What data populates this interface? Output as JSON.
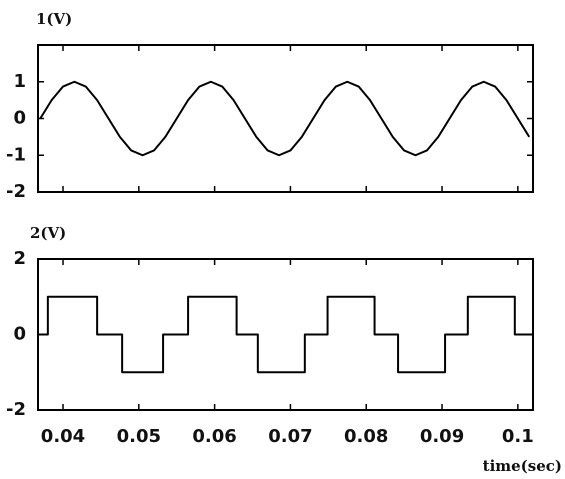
{
  "chart_data": [
    {
      "type": "line",
      "ylabel": "1(V)",
      "color": "#000000",
      "xlim": [
        0.0367,
        0.102
      ],
      "ylim": [
        -2,
        2
      ],
      "yticks": [
        1,
        0,
        -1,
        -2
      ],
      "xticks": [
        0.04,
        0.05,
        0.06,
        0.07,
        0.08,
        0.09,
        0.1
      ],
      "x": [
        0.037,
        0.0385,
        0.04,
        0.0415,
        0.043,
        0.0445,
        0.046,
        0.0475,
        0.049,
        0.0505,
        0.052,
        0.0535,
        0.055,
        0.0565,
        0.058,
        0.0595,
        0.061,
        0.0625,
        0.064,
        0.0655,
        0.067,
        0.0685,
        0.07,
        0.0715,
        0.073,
        0.0745,
        0.076,
        0.0775,
        0.079,
        0.0805,
        0.082,
        0.0835,
        0.085,
        0.0865,
        0.088,
        0.0895,
        0.091,
        0.0925,
        0.094,
        0.0955,
        0.097,
        0.0985,
        0.1,
        0.1015
      ],
      "values": [
        0,
        0.5,
        0.87,
        1,
        0.87,
        0.5,
        0,
        -0.5,
        -0.87,
        -1,
        -0.87,
        -0.5,
        0,
        0.5,
        0.87,
        1,
        0.87,
        0.5,
        0,
        -0.5,
        -0.87,
        -1,
        -0.87,
        -0.5,
        0,
        0.5,
        0.87,
        1,
        0.87,
        0.5,
        0,
        -0.5,
        -0.87,
        -1,
        -0.87,
        -0.5,
        0,
        0.5,
        0.87,
        1,
        0.87,
        0.5,
        0,
        -0.5
      ]
    },
    {
      "type": "step",
      "ylabel": "2(V)",
      "xlabel": "time(sec)",
      "color": "#000000",
      "xlim": [
        0.0367,
        0.102
      ],
      "ylim": [
        -2,
        2
      ],
      "yticks": [
        2,
        0,
        -2
      ],
      "xticks": [
        0.04,
        0.05,
        0.06,
        0.07,
        0.08,
        0.09,
        0.1
      ],
      "x": [
        0.0367,
        0.038,
        0.0445,
        0.0478,
        0.0532,
        0.0565,
        0.0629,
        0.0657,
        0.0719,
        0.0749,
        0.0811,
        0.0842,
        0.0904,
        0.0934,
        0.0996
      ],
      "values": [
        0,
        1,
        0,
        -1,
        0,
        1,
        0,
        -1,
        0,
        1,
        0,
        -1,
        0,
        1,
        0
      ]
    }
  ]
}
